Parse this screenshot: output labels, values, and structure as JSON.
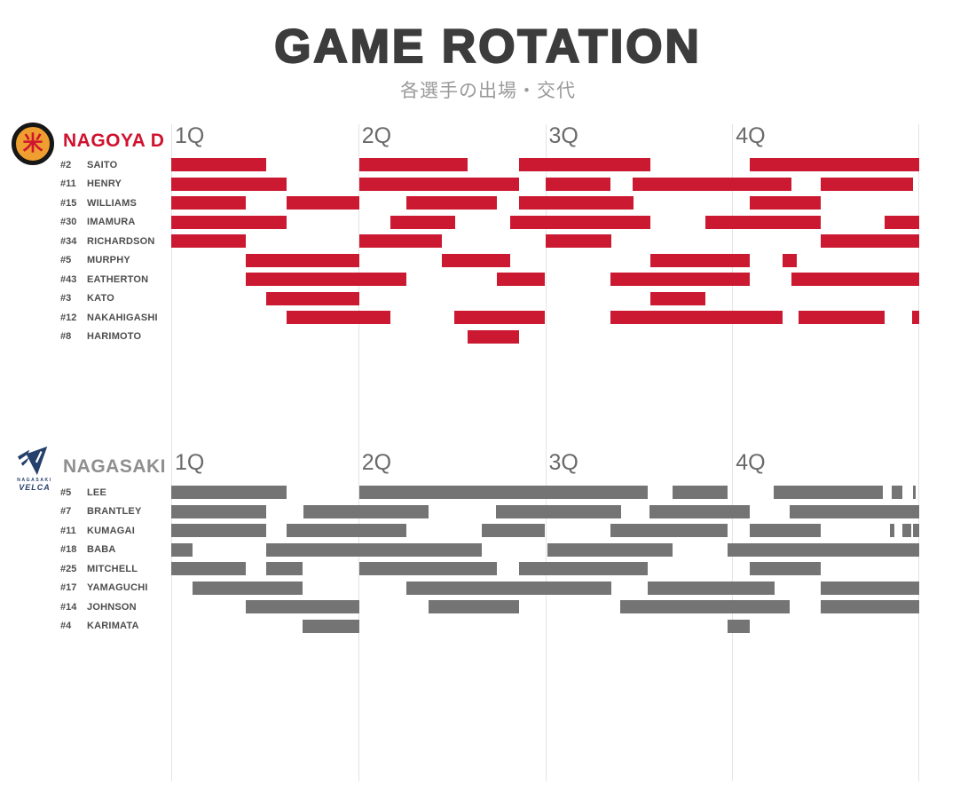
{
  "header": {
    "title": "GAME ROTATION",
    "subtitle": "各選手の出場・交代"
  },
  "chart_data": {
    "type": "gantt-rotation",
    "x_axis": {
      "unit": "minutes",
      "range": [
        0,
        40
      ],
      "quarter_labels": [
        "1Q",
        "2Q",
        "3Q",
        "4Q"
      ],
      "gridlines_at_minutes": [
        0,
        10,
        20,
        30,
        40
      ]
    },
    "teams": [
      {
        "name": "NAGOYA D",
        "name_color": "#d0122e",
        "bar_color": "#cb1931",
        "logo_icon": "nagoya-d-basketball-crest",
        "players": [
          {
            "number": "#2",
            "name": "SAITO",
            "stints": [
              [
                0,
                5.08
              ],
              [
                10.06,
                15.85
              ],
              [
                18.6,
                25.62
              ],
              [
                30.94,
                40
              ]
            ]
          },
          {
            "number": "#11",
            "name": "HENRY",
            "stints": [
              [
                0,
                6.17
              ],
              [
                10.06,
                18.6
              ],
              [
                20.02,
                23.49
              ],
              [
                24.67,
                33.17
              ],
              [
                34.73,
                39.67
              ]
            ]
          },
          {
            "number": "#15",
            "name": "WILLIAMS",
            "stints": [
              [
                0,
                3.99
              ],
              [
                6.17,
                10.06
              ],
              [
                12.57,
                17.41
              ],
              [
                18.6,
                24.72
              ],
              [
                30.94,
                34.73
              ]
            ]
          },
          {
            "number": "#30",
            "name": "IMAMURA",
            "stints": [
              [
                0,
                6.17
              ],
              [
                11.72,
                15.18
              ],
              [
                18.13,
                25.62
              ],
              [
                28.57,
                34.73
              ],
              [
                38.15,
                40
              ]
            ]
          },
          {
            "number": "#34",
            "name": "RICHARDSON",
            "stints": [
              [
                0,
                3.99
              ],
              [
                10.06,
                14.47
              ],
              [
                20.02,
                23.53
              ],
              [
                34.73,
                40
              ]
            ]
          },
          {
            "number": "#5",
            "name": "MURPHY",
            "stints": [
              [
                3.99,
                10.06
              ],
              [
                14.47,
                18.13
              ],
              [
                25.62,
                30.94
              ],
              [
                32.69,
                33.45
              ]
            ]
          },
          {
            "number": "#43",
            "name": "EATHERTON",
            "stints": [
              [
                3.99,
                12.57
              ],
              [
                17.41,
                19.98
              ],
              [
                23.49,
                30.94
              ],
              [
                33.17,
                40
              ]
            ]
          },
          {
            "number": "#3",
            "name": "KATO",
            "stints": [
              [
                5.08,
                10.06
              ],
              [
                25.62,
                28.57
              ]
            ]
          },
          {
            "number": "#12",
            "name": "NAKAHIGASHI",
            "stints": [
              [
                6.17,
                11.72
              ],
              [
                15.14,
                19.98
              ],
              [
                23.49,
                32.69
              ],
              [
                33.55,
                38.15
              ],
              [
                39.62,
                40
              ]
            ]
          },
          {
            "number": "#8",
            "name": "HARIMOTO",
            "stints": [
              [
                15.85,
                18.6
              ]
            ]
          }
        ]
      },
      {
        "name": "NAGASAKI",
        "name_color": "#8f8f8f",
        "bar_color": "#747474",
        "logo_icon": "nagasaki-velca-bird-emblem",
        "logo_text_line1": "NAGASAKI",
        "logo_text_line2": "VELCA",
        "players": [
          {
            "number": "#5",
            "name": "LEE",
            "stints": [
              [
                0,
                6.17
              ],
              [
                10.06,
                25.48
              ],
              [
                26.81,
                29.75
              ],
              [
                32.22,
                38.06
              ],
              [
                38.53,
                39.1
              ],
              [
                39.67,
                39.81
              ]
            ]
          },
          {
            "number": "#7",
            "name": "BRANTLEY",
            "stints": [
              [
                0,
                5.08
              ],
              [
                7.07,
                13.76
              ],
              [
                17.37,
                24.06
              ],
              [
                25.58,
                30.94
              ],
              [
                33.07,
                40
              ]
            ]
          },
          {
            "number": "#11",
            "name": "KUMAGAI",
            "stints": [
              [
                0,
                5.08
              ],
              [
                6.17,
                12.57
              ],
              [
                16.61,
                19.98
              ],
              [
                23.49,
                29.75
              ],
              [
                30.94,
                34.73
              ],
              [
                38.43,
                38.67
              ],
              [
                39.1,
                39.57
              ],
              [
                39.67,
                40
              ]
            ]
          },
          {
            "number": "#18",
            "name": "BABA",
            "stints": [
              [
                0,
                1.14
              ],
              [
                5.08,
                16.61
              ],
              [
                20.12,
                26.81
              ],
              [
                29.75,
                40
              ]
            ]
          },
          {
            "number": "#25",
            "name": "MITCHELL",
            "stints": [
              [
                0,
                3.99
              ],
              [
                5.08,
                7.02
              ],
              [
                10.06,
                17.41
              ],
              [
                18.6,
                25.48
              ],
              [
                30.94,
                34.73
              ]
            ]
          },
          {
            "number": "#17",
            "name": "YAMAGUCHI",
            "stints": [
              [
                1.14,
                7.02
              ],
              [
                12.57,
                23.53
              ],
              [
                25.48,
                32.27
              ],
              [
                34.73,
                40
              ]
            ]
          },
          {
            "number": "#14",
            "name": "JOHNSON",
            "stints": [
              [
                3.99,
                10.06
              ],
              [
                13.76,
                18.6
              ],
              [
                24.01,
                33.07
              ],
              [
                34.73,
                40
              ]
            ]
          },
          {
            "number": "#4",
            "name": "KARIMATA",
            "stints": [
              [
                7.02,
                10.06
              ],
              [
                29.75,
                30.94
              ]
            ]
          }
        ]
      }
    ]
  }
}
